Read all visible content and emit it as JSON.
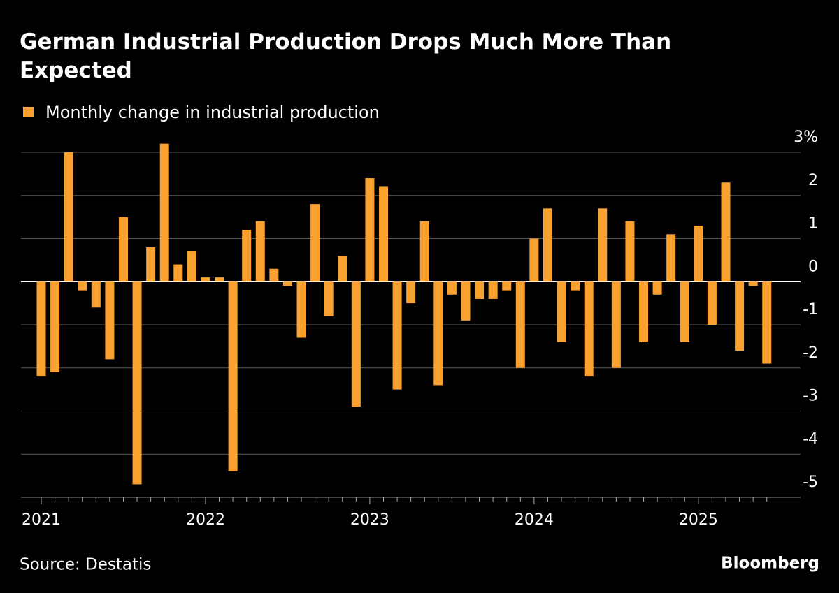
{
  "chart_data": {
    "type": "bar",
    "title": "German Industrial Production Drops Much More Than Expected",
    "series": [
      {
        "name": "Monthly change in industrial production",
        "color": "#f8a030",
        "values": [
          -2.2,
          -2.1,
          3.0,
          -0.2,
          -0.6,
          -1.8,
          1.5,
          -4.7,
          0.8,
          3.2,
          0.4,
          0.7,
          0.1,
          0.1,
          -4.4,
          1.2,
          1.4,
          0.3,
          -0.1,
          -1.3,
          1.8,
          -0.8,
          0.6,
          -2.9,
          2.4,
          2.2,
          -2.5,
          -0.5,
          1.4,
          -2.4,
          -0.3,
          -0.9,
          -0.4,
          -0.4,
          -0.2,
          -2.0,
          1.0,
          1.7,
          -1.4,
          -0.2,
          -2.2,
          1.7,
          -2.0,
          1.4,
          -1.4,
          -0.3,
          1.1,
          -1.4,
          1.3,
          -1.0,
          2.3,
          -1.6,
          -0.1,
          -1.9
        ]
      }
    ],
    "categories": [
      "2021",
      null,
      null,
      null,
      null,
      null,
      null,
      null,
      null,
      null,
      null,
      null,
      "2022",
      null,
      null,
      null,
      null,
      null,
      null,
      null,
      null,
      null,
      null,
      null,
      "2023",
      null,
      null,
      null,
      null,
      null,
      null,
      null,
      null,
      null,
      null,
      null,
      "2024",
      null,
      null,
      null,
      null,
      null,
      null,
      null,
      null,
      null,
      null,
      null,
      "2025",
      null,
      null,
      null,
      null,
      null
    ],
    "ylim": [
      -5,
      3
    ],
    "yticks": [
      {
        "value": 3,
        "label": "3%"
      },
      2,
      1,
      0,
      -1,
      -2,
      -3,
      -4,
      -5
    ],
    "grid": true,
    "source": "Source: Destatis",
    "brand": "Bloomberg"
  }
}
